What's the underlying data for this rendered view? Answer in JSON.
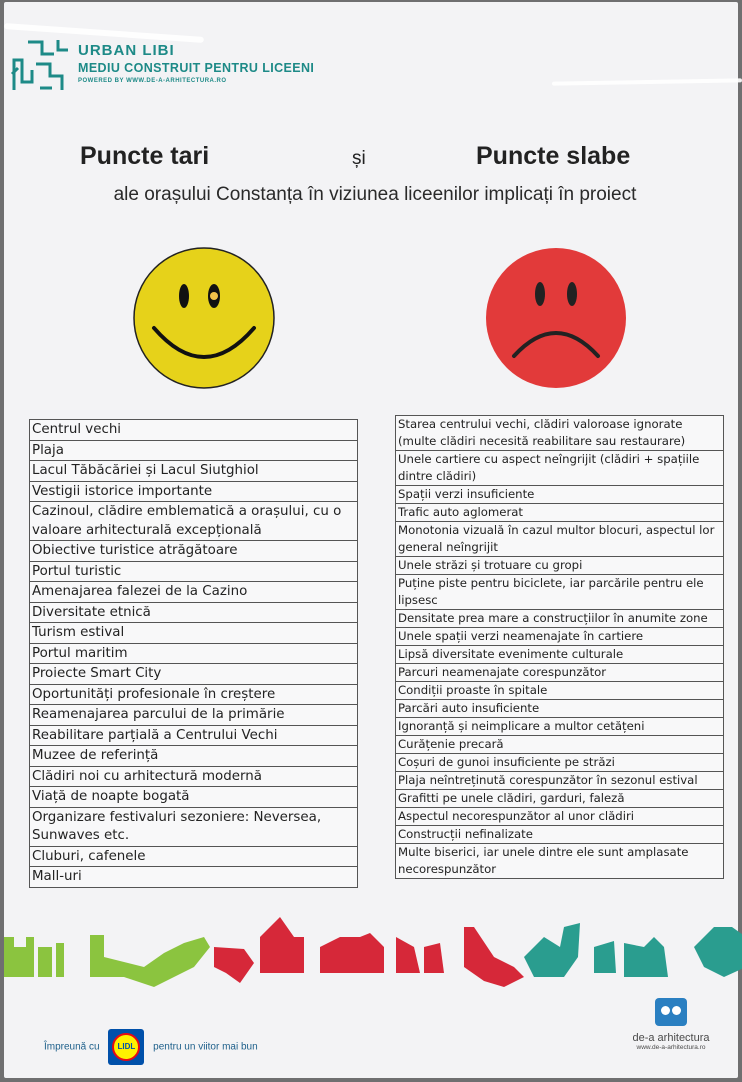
{
  "header": {
    "brand_top": "URBAN LIBI",
    "brand_subtitle": "MEDIU CONSTRUIT PENTRU LICEENI",
    "brand_powered": "POWERED BY WWW.DE-A-ARHITECTURA.RO"
  },
  "title": {
    "left": "Puncte tari",
    "and": "și",
    "right": "Puncte slabe",
    "subtitle": "ale orașului Constanța în viziunea liceenilor implicați în proiect"
  },
  "icons": {
    "strong": "happy-face-icon",
    "weak": "sad-face-icon",
    "strong_color": "#e6d21a",
    "weak_color": "#e23a3a"
  },
  "strong_points": [
    "Centrul vechi",
    "Plaja",
    "Lacul Tăbăcăriei și Lacul Siutghiol",
    "Vestigii istorice importante",
    "Cazinoul, clădire emblematică a orașului, cu o valoare arhitecturală excepțională",
    "Obiective turistice atrăgătoare",
    "Portul turistic",
    "Amenajarea falezei de la Cazino",
    "Diversitate etnică",
    "Turism estival",
    "Portul maritim",
    "Proiecte Smart City",
    "Oportunități profesionale în creștere",
    "Reamenajarea parcului de la primărie",
    "Reabilitare parțială a Centrului Vechi",
    "Muzee de referință",
    "Clădiri noi cu arhitectură modernă",
    "Viață de noapte bogată",
    "Organizare festivaluri sezoniere: Neversea, Sunwaves etc.",
    "Cluburi, cafenele",
    "Mall-uri"
  ],
  "weak_points": [
    "Starea centrului vechi, clădiri valoroase ignorate (multe clădiri necesită reabilitare sau restaurare)",
    "Unele cartiere cu aspect neîngrijit (clădiri + spațiile dintre clădiri)",
    "Spații verzi insuficiente",
    "Trafic auto aglomerat",
    "Monotonia vizuală în cazul multor blocuri, aspectul lor general neîngrijit",
    "Unele străzi și trotuare cu gropi",
    "Puține piste pentru biciclete, iar parcările pentru ele lipsesc",
    "Densitate prea mare a construcțiilor în anumite zone",
    "Unele spații verzi neamenajate în cartiere",
    "Lipsă diversitate evenimente culturale",
    "Parcuri neamenajate corespunzător",
    "Condiții proaste în spitale",
    "Parcări auto insuficiente",
    "Ignoranță și neimplicare a multor cetățeni",
    "Curățenie precară",
    "Coșuri de gunoi insuficiente pe străzi",
    "Plaja neîntreținută corespunzător în sezonul estival",
    "Grafitti pe unele clădiri, garduri, faleză",
    "Aspectul necorespunzător al unor clădiri",
    "Construcții nefinalizate",
    "Multe biserici, iar unele dintre ele sunt amplasate necorespunzător"
  ],
  "footer": {
    "together": "Împreună cu",
    "lidl": "LIDL",
    "future": "pentru un viitor mai bun",
    "dea_name": "de-a arhitectura",
    "dea_url": "www.de-a-arhitectura.ro"
  }
}
